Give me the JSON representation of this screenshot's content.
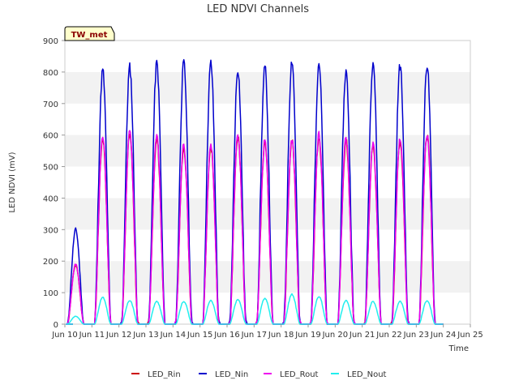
{
  "chart_data": {
    "type": "line",
    "title": "LED NDVI Channels",
    "xlabel": "Time",
    "ylabel": "LED NDVI (mV)",
    "ylim": [
      0,
      900
    ],
    "xlim": [
      10,
      25
    ],
    "yticks": [
      0,
      100,
      200,
      300,
      400,
      500,
      600,
      700,
      800,
      900
    ],
    "xticks": [
      {
        "x": 10,
        "label": "Jun 10"
      },
      {
        "x": 11,
        "label": "Jun 11"
      },
      {
        "x": 12,
        "label": "Jun 12"
      },
      {
        "x": 13,
        "label": "Jun 13"
      },
      {
        "x": 14,
        "label": "Jun 14"
      },
      {
        "x": 15,
        "label": "Jun 15"
      },
      {
        "x": 16,
        "label": "Jun 16"
      },
      {
        "x": 17,
        "label": "Jun 17"
      },
      {
        "x": 18,
        "label": "Jun 18"
      },
      {
        "x": 19,
        "label": "Jun 19"
      },
      {
        "x": 20,
        "label": "Jun 20"
      },
      {
        "x": 21,
        "label": "Jun 21"
      },
      {
        "x": 22,
        "label": "Jun 22"
      },
      {
        "x": 23,
        "label": "Jun 23"
      },
      {
        "x": 24,
        "label": "Jun 24"
      },
      {
        "x": 25,
        "label": "Jun 25"
      }
    ],
    "grid": "horizontal bands",
    "legend_position": "bottom",
    "annotation": "TW_met",
    "daily_peaks": {
      "days": [
        10.4,
        11.4,
        12.4,
        13.4,
        14.4,
        15.4,
        16.4,
        17.4,
        18.4,
        19.4,
        20.4,
        21.4,
        22.4,
        23.4
      ],
      "nin": [
        300,
        805,
        815,
        828,
        828,
        828,
        810,
        812,
        838,
        830,
        802,
        835,
        822,
        825
      ],
      "rout": [
        190,
        598,
        610,
        595,
        567,
        572,
        598,
        580,
        588,
        600,
        588,
        572,
        588,
        605
      ],
      "nout": [
        25,
        85,
        75,
        72,
        72,
        75,
        78,
        82,
        95,
        88,
        75,
        72,
        72,
        75
      ]
    },
    "series": [
      {
        "name": "LED_Rin",
        "color": "#cc0000",
        "key": "rin"
      },
      {
        "name": "LED_Nin",
        "color": "#0000cc",
        "key": "nin"
      },
      {
        "name": "LED_Rout",
        "color": "#ee00ee",
        "key": "rout"
      },
      {
        "name": "LED_Nout",
        "color": "#22eeee",
        "key": "nout"
      }
    ]
  }
}
